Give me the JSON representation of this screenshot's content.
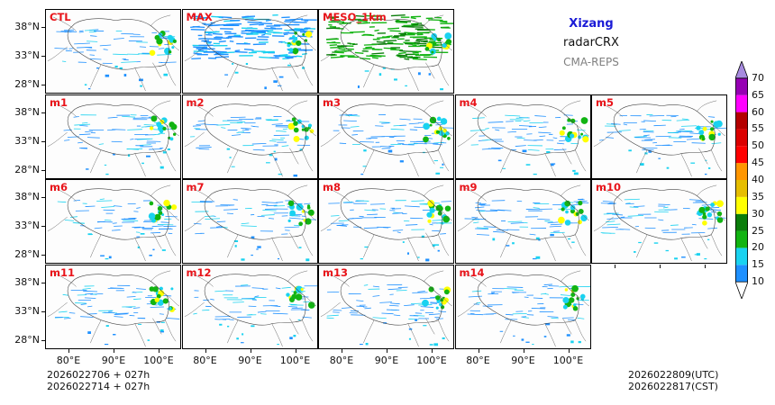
{
  "header": {
    "region": "Xizang",
    "variable": "radarCRX",
    "model": "CMA-REPS"
  },
  "panels": [
    {
      "label": "CTL",
      "row": 0,
      "col": 0
    },
    {
      "label": "MAX",
      "row": 0,
      "col": 1
    },
    {
      "label": "MESO_1km",
      "row": 0,
      "col": 2
    },
    {
      "label": "m1",
      "row": 1,
      "col": 0
    },
    {
      "label": "m2",
      "row": 1,
      "col": 1
    },
    {
      "label": "m3",
      "row": 1,
      "col": 2
    },
    {
      "label": "m4",
      "row": 1,
      "col": 3
    },
    {
      "label": "m5",
      "row": 1,
      "col": 4
    },
    {
      "label": "m6",
      "row": 2,
      "col": 0
    },
    {
      "label": "m7",
      "row": 2,
      "col": 1
    },
    {
      "label": "m8",
      "row": 2,
      "col": 2
    },
    {
      "label": "m9",
      "row": 2,
      "col": 3
    },
    {
      "label": "m10",
      "row": 2,
      "col": 4
    },
    {
      "label": "m11",
      "row": 3,
      "col": 0
    },
    {
      "label": "m12",
      "row": 3,
      "col": 1
    },
    {
      "label": "m13",
      "row": 3,
      "col": 2
    },
    {
      "label": "m14",
      "row": 3,
      "col": 3
    }
  ],
  "axes": {
    "lat_labels": [
      "38°N",
      "33°N",
      "28°N"
    ],
    "lon_labels": [
      "80°E",
      "90°E",
      "100°E"
    ]
  },
  "colorbar": {
    "levels": [
      "10",
      "15",
      "20",
      "25",
      "30",
      "35",
      "40",
      "45",
      "50",
      "55",
      "60",
      "65",
      "70"
    ],
    "colors": [
      "#1e90ff",
      "#19d2f0",
      "#12b412",
      "#0a7d0a",
      "#ffff00",
      "#e6be00",
      "#ff9600",
      "#ff0000",
      "#dc0000",
      "#b40000",
      "#ff00ff",
      "#9600b4",
      "#a78bdf"
    ]
  },
  "footer": {
    "init_utc": "2026022706  +  027h",
    "init_cst": "2026022714  +  027h",
    "valid_utc": "2026022809(UTC)",
    "valid_cst": "2026022817(CST)"
  }
}
